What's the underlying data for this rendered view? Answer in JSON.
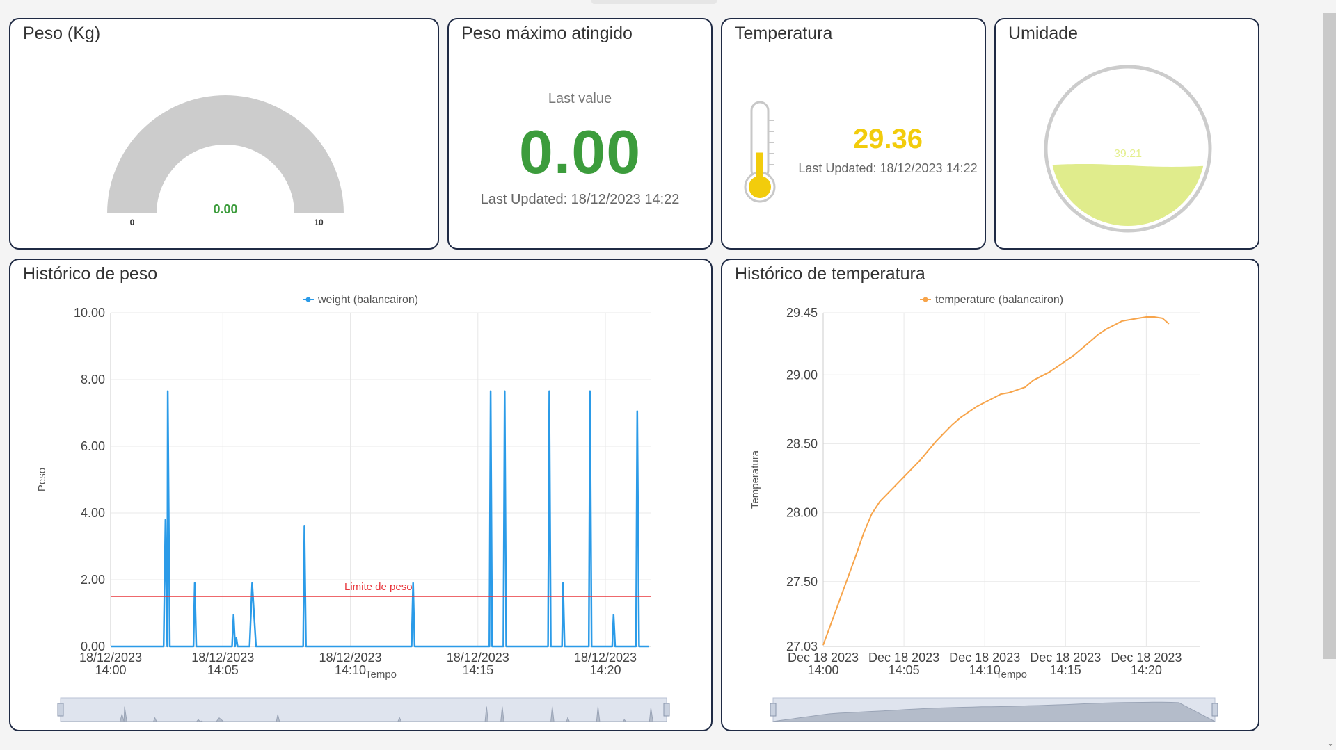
{
  "gauge": {
    "title": "Peso (Kg)",
    "value": 0,
    "value_label": "0.00",
    "min_label": "0",
    "max_label": "10",
    "min": 0,
    "max": 10
  },
  "max_weight": {
    "title": "Peso máximo atingido",
    "last_label": "Last value",
    "value": "0.00",
    "updated": "Last Updated: 18/12/2023 14:22"
  },
  "temperature": {
    "title": "Temperatura",
    "value": "29.36",
    "updated": "Last Updated: 18/12/2023 14:22",
    "level": 0.45
  },
  "humidity": {
    "title": "Umidade",
    "value": "39.21",
    "level": 0.3921
  },
  "colors": {
    "weight_series": "#2b9be8",
    "temperature_series": "#f7a44a",
    "threshold": "#e8363c",
    "gauge_track": "#cccccc",
    "humidity_fill": "#e0ec8c",
    "value_green": "#3c9c3c",
    "temp_yellow": "#f2cc0c"
  },
  "chart_data": [
    {
      "type": "line",
      "title": "Histórico de peso",
      "xlabel": "Tempo",
      "ylabel": "Peso",
      "ylim": [
        0,
        10
      ],
      "yticks": [
        "0.00",
        "2.00",
        "4.00",
        "6.00",
        "8.00",
        "10.00"
      ],
      "xlim": [
        0,
        21.2
      ],
      "xticks": [
        {
          "x": 0,
          "l1": "18/12/2023",
          "l2": "14:00"
        },
        {
          "x": 4.4,
          "l1": "18/12/2023",
          "l2": "14:05"
        },
        {
          "x": 9.4,
          "l1": "18/12/2023",
          "l2": "14:10"
        },
        {
          "x": 14.4,
          "l1": "18/12/2023",
          "l2": "14:15"
        },
        {
          "x": 19.4,
          "l1": "18/12/2023",
          "l2": "14:20"
        }
      ],
      "grid": true,
      "legend": "top",
      "series": [
        {
          "name": "weight  (balancairon)",
          "points": [
            [
              0,
              0
            ],
            [
              2.08,
              0
            ],
            [
              2.15,
              3.8
            ],
            [
              2.22,
              0
            ],
            [
              2.24,
              7.65
            ],
            [
              2.32,
              0
            ],
            [
              3.25,
              0
            ],
            [
              3.3,
              1.9
            ],
            [
              3.36,
              0
            ],
            [
              4.76,
              0
            ],
            [
              4.82,
              0.95
            ],
            [
              4.88,
              0
            ],
            [
              4.93,
              0.25
            ],
            [
              4.98,
              0
            ],
            [
              5.45,
              0
            ],
            [
              5.55,
              1.9
            ],
            [
              5.7,
              0
            ],
            [
              7.55,
              0
            ],
            [
              7.6,
              3.6
            ],
            [
              7.66,
              0
            ],
            [
              11.8,
              0
            ],
            [
              11.86,
              1.9
            ],
            [
              11.92,
              0
            ],
            [
              14.85,
              0
            ],
            [
              14.9,
              7.65
            ],
            [
              14.96,
              0
            ],
            [
              15.4,
              0
            ],
            [
              15.45,
              7.65
            ],
            [
              15.51,
              0
            ],
            [
              17.15,
              0
            ],
            [
              17.2,
              7.65
            ],
            [
              17.26,
              0
            ],
            [
              17.7,
              0
            ],
            [
              17.74,
              1.9
            ],
            [
              17.8,
              0
            ],
            [
              18.75,
              0
            ],
            [
              18.8,
              7.65
            ],
            [
              18.86,
              0
            ],
            [
              19.67,
              0
            ],
            [
              19.72,
              0.95
            ],
            [
              19.78,
              0
            ],
            [
              20.6,
              0
            ],
            [
              20.65,
              7.05
            ],
            [
              20.72,
              0
            ],
            [
              21.1,
              0
            ]
          ]
        }
      ],
      "threshold": {
        "label": "Limite de peso",
        "value": 1.5
      }
    },
    {
      "type": "line",
      "title": "Histórico de temperatura",
      "xlabel": "Tempo",
      "ylabel": "Temperatura",
      "ylim": [
        27.03,
        29.45
      ],
      "yticks": [
        "27.03",
        "27.50",
        "28.00",
        "28.50",
        "29.00",
        "29.45"
      ],
      "xlim": [
        0,
        23.3
      ],
      "xticks": [
        {
          "x": 0,
          "l1": "Dec 18 2023",
          "l2": "14:00"
        },
        {
          "x": 5,
          "l1": "Dec 18 2023",
          "l2": "14:05"
        },
        {
          "x": 10,
          "l1": "Dec 18 2023",
          "l2": "14:10"
        },
        {
          "x": 15,
          "l1": "Dec 18 2023",
          "l2": "14:15"
        },
        {
          "x": 20,
          "l1": "Dec 18 2023",
          "l2": "14:20"
        }
      ],
      "grid": true,
      "legend": "top",
      "series": [
        {
          "name": "temperature  (balancairon)",
          "points": [
            [
              0,
              27.04
            ],
            [
              0.5,
              27.2
            ],
            [
              1,
              27.36
            ],
            [
              1.5,
              27.52
            ],
            [
              2,
              27.68
            ],
            [
              2.5,
              27.85
            ],
            [
              3,
              27.99
            ],
            [
              3.5,
              28.08
            ],
            [
              4,
              28.14
            ],
            [
              4.5,
              28.2
            ],
            [
              5,
              28.26
            ],
            [
              5.5,
              28.32
            ],
            [
              6,
              28.38
            ],
            [
              6.5,
              28.45
            ],
            [
              7,
              28.52
            ],
            [
              7.5,
              28.58
            ],
            [
              8,
              28.64
            ],
            [
              8.5,
              28.69
            ],
            [
              9,
              28.73
            ],
            [
              9.5,
              28.77
            ],
            [
              10,
              28.8
            ],
            [
              10.5,
              28.83
            ],
            [
              11,
              28.86
            ],
            [
              11.5,
              28.87
            ],
            [
              12,
              28.89
            ],
            [
              12.5,
              28.91
            ],
            [
              13,
              28.96
            ],
            [
              13.5,
              28.99
            ],
            [
              14,
              29.02
            ],
            [
              14.5,
              29.06
            ],
            [
              15,
              29.1
            ],
            [
              15.5,
              29.14
            ],
            [
              16,
              29.19
            ],
            [
              16.5,
              29.24
            ],
            [
              17,
              29.29
            ],
            [
              17.5,
              29.33
            ],
            [
              18,
              29.36
            ],
            [
              18.5,
              29.39
            ],
            [
              19,
              29.4
            ],
            [
              19.5,
              29.41
            ],
            [
              20,
              29.42
            ],
            [
              20.5,
              29.42
            ],
            [
              21,
              29.41
            ],
            [
              21.4,
              29.37
            ]
          ]
        }
      ]
    }
  ]
}
